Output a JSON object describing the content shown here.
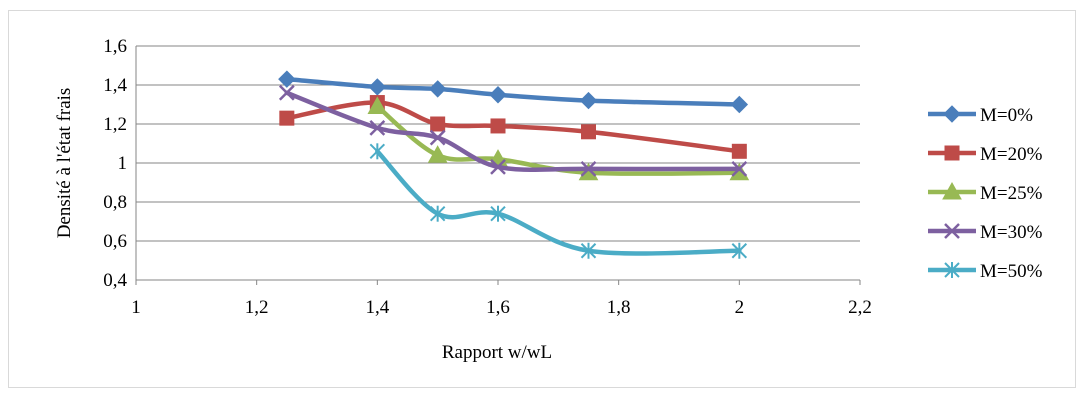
{
  "chart_data": {
    "type": "scatter",
    "title": "",
    "xlabel": "Rapport w/wL",
    "ylabel": "Densité à l'état frais",
    "xlim": [
      1,
      2.2
    ],
    "ylim": [
      0.4,
      1.6
    ],
    "x_ticks": [
      "1",
      "1,2",
      "1,4",
      "1,6",
      "1,8",
      "2",
      "2,2"
    ],
    "y_ticks": [
      "0,4",
      "0,6",
      "0,8",
      "1",
      "1,2",
      "1,4",
      "1,6"
    ],
    "grid": "horizontal",
    "legend_position": "right",
    "smooth_lines": true,
    "series": [
      {
        "name": "M=0%",
        "color": "#4a7ebb",
        "marker": "diamond",
        "x": [
          1.25,
          1.4,
          1.5,
          1.6,
          1.75,
          2.0
        ],
        "y": [
          1.43,
          1.39,
          1.38,
          1.35,
          1.32,
          1.3
        ]
      },
      {
        "name": "M=20%",
        "color": "#be4b48",
        "marker": "square",
        "x": [
          1.25,
          1.4,
          1.5,
          1.6,
          1.75,
          2.0
        ],
        "y": [
          1.23,
          1.31,
          1.2,
          1.19,
          1.16,
          1.06
        ]
      },
      {
        "name": "M=25%",
        "color": "#98b954",
        "marker": "triangle",
        "x": [
          1.4,
          1.5,
          1.6,
          1.75,
          2.0
        ],
        "y": [
          1.29,
          1.04,
          1.02,
          0.95,
          0.95
        ]
      },
      {
        "name": "M=30%",
        "color": "#7d60a0",
        "marker": "x",
        "x": [
          1.25,
          1.4,
          1.5,
          1.6,
          1.75,
          2.0
        ],
        "y": [
          1.36,
          1.18,
          1.13,
          0.98,
          0.97,
          0.97
        ]
      },
      {
        "name": "M=50%",
        "color": "#4bacc6",
        "marker": "star",
        "x": [
          1.4,
          1.5,
          1.6,
          1.75,
          2.0
        ],
        "y": [
          1.06,
          0.74,
          0.74,
          0.55,
          0.55
        ]
      }
    ]
  }
}
